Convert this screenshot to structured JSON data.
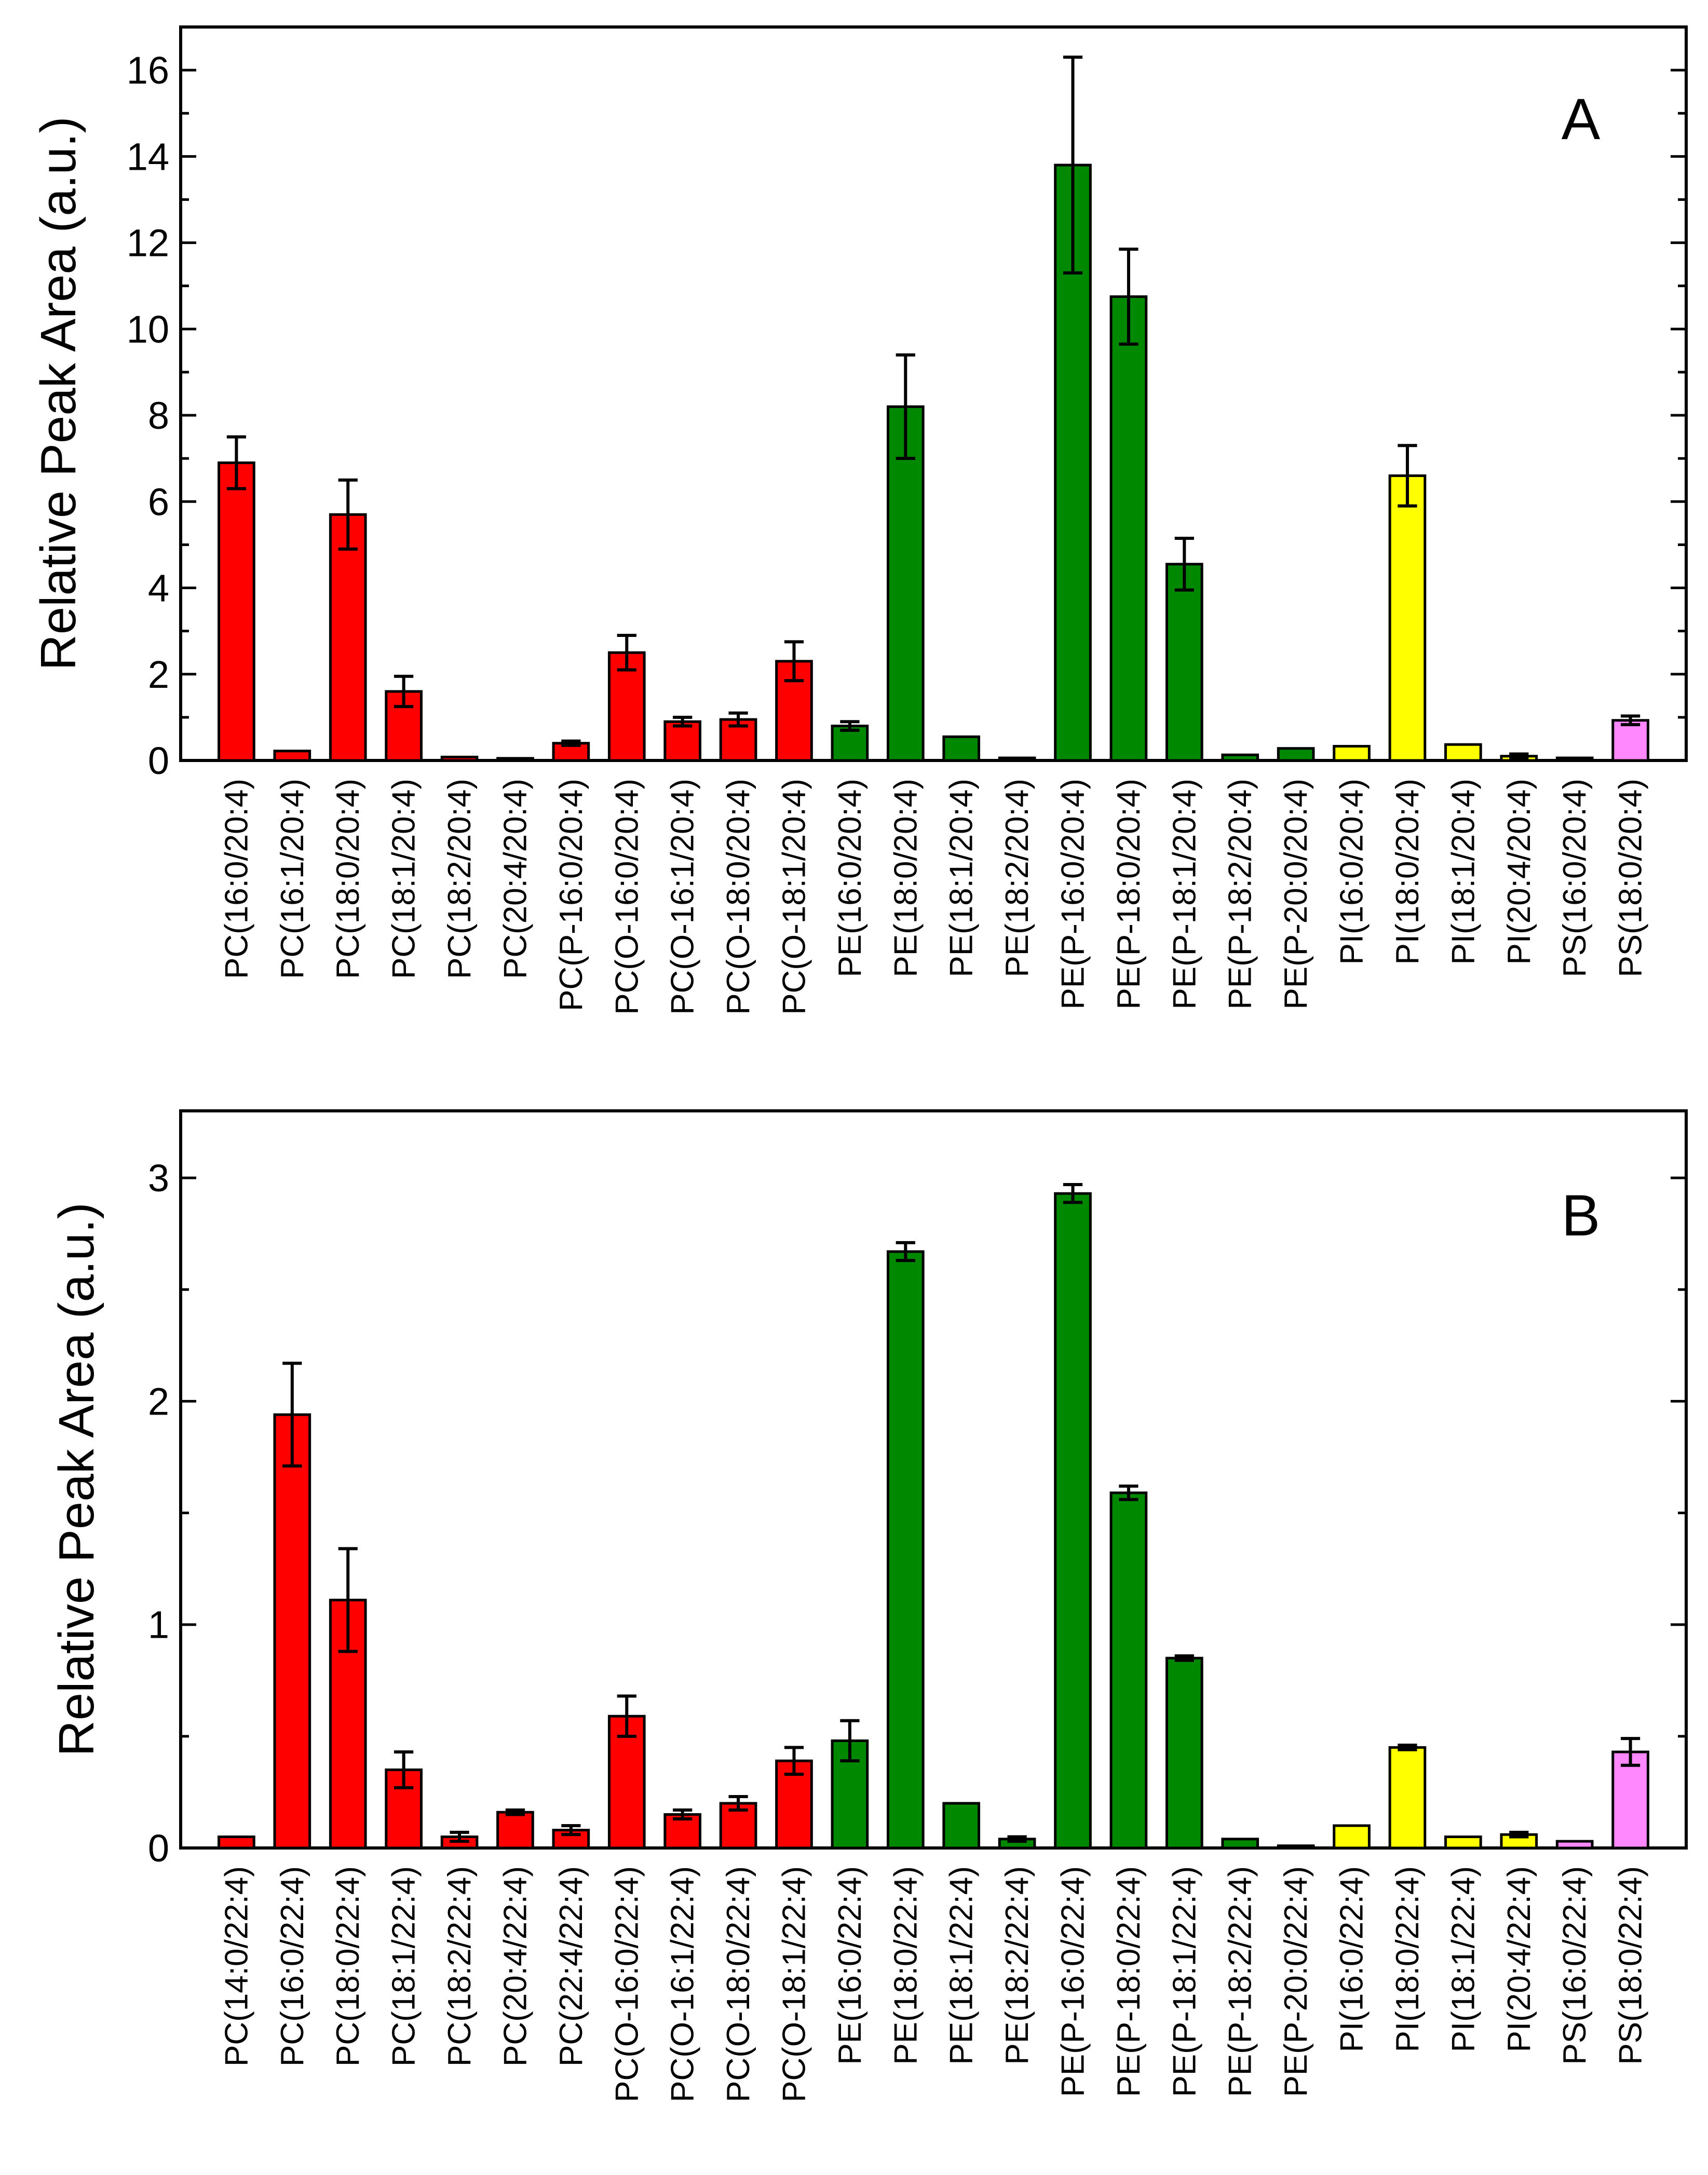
{
  "colors": {
    "PC": "#ff0000",
    "PE": "#008800",
    "PI": "#ffff00",
    "PS": "#ff88ff"
  },
  "chart_data": [
    {
      "type": "bar",
      "panel_label": "A",
      "ylabel": "Relative Peak Area (a.u.)",
      "xlabel": "",
      "ylim": [
        0,
        17
      ],
      "yticks": [
        0,
        2,
        4,
        6,
        8,
        10,
        12,
        14,
        16
      ],
      "categories": [
        "PC(16:0/20:4)",
        "PC(16:1/20:4)",
        "PC(18:0/20:4)",
        "PC(18:1/20:4)",
        "PC(18:2/20:4)",
        "PC(20:4/20:4)",
        "PC(P-16:0/20:4)",
        "PC(O-16:0/20:4)",
        "PC(O-16:1/20:4)",
        "PC(O-18:0/20:4)",
        "PC(O-18:1/20:4)",
        "PE(16:0/20:4)",
        "PE(18:0/20:4)",
        "PE(18:1/20:4)",
        "PE(18:2/20:4)",
        "PE(P-16:0/20:4)",
        "PE(P-18:0/20:4)",
        "PE(P-18:1/20:4)",
        "PE(P-18:2/20:4)",
        "PE(P-20:0/20:4)",
        "PI(16:0/20:4)",
        "PI(18:0/20:4)",
        "PI(18:1/20:4)",
        "PI(20:4/20:4)",
        "PS(16:0/20:4)",
        "PS(18:0/20:4)"
      ],
      "classes": [
        "PC",
        "PC",
        "PC",
        "PC",
        "PC",
        "PC",
        "PC",
        "PC",
        "PC",
        "PC",
        "PC",
        "PE",
        "PE",
        "PE",
        "PE",
        "PE",
        "PE",
        "PE",
        "PE",
        "PE",
        "PI",
        "PI",
        "PI",
        "PI",
        "PS",
        "PS"
      ],
      "values": [
        6.9,
        0.22,
        5.7,
        1.6,
        0.08,
        0.05,
        0.4,
        2.5,
        0.9,
        0.95,
        2.3,
        0.8,
        8.2,
        0.55,
        0.06,
        13.8,
        10.75,
        4.55,
        0.13,
        0.28,
        0.33,
        6.6,
        0.37,
        0.1,
        0.06,
        0.93
      ],
      "errors": [
        0.6,
        0.0,
        0.8,
        0.35,
        0.0,
        0.0,
        0.05,
        0.4,
        0.1,
        0.15,
        0.45,
        0.1,
        1.2,
        0.0,
        0.0,
        2.5,
        1.1,
        0.6,
        0.0,
        0.0,
        0.0,
        0.7,
        0.0,
        0.05,
        0.0,
        0.1
      ]
    },
    {
      "type": "bar",
      "panel_label": "B",
      "ylabel": "Relative Peak Area (a.u.)",
      "xlabel": "",
      "ylim": [
        0,
        3.3
      ],
      "yticks": [
        0,
        1,
        2,
        3
      ],
      "categories": [
        "PC(14:0/22:4)",
        "PC(16:0/22:4)",
        "PC(18:0/22:4)",
        "PC(18:1/22:4)",
        "PC(18:2/22:4)",
        "PC(20:4/22:4)",
        "PC(22:4/22:4)",
        "PC(O-16:0/22:4)",
        "PC(O-16:1/22:4)",
        "PC(O-18:0/22:4)",
        "PC(O-18:1/22:4)",
        "PE(16:0/22:4)",
        "PE(18:0/22:4)",
        "PE(18:1/22:4)",
        "PE(18:2/22:4)",
        "PE(P-16:0/22:4)",
        "PE(P-18:0/22:4)",
        "PE(P-18:1/22:4)",
        "PE(P-18:2/22:4)",
        "PE(P-20:0/22:4)",
        "PI(16:0/22:4)",
        "PI(18:0/22:4)",
        "PI(18:1/22:4)",
        "PI(20:4/22:4)",
        "PS(16:0/22:4)",
        "PS(18:0/22:4)"
      ],
      "classes": [
        "PC",
        "PC",
        "PC",
        "PC",
        "PC",
        "PC",
        "PC",
        "PC",
        "PC",
        "PC",
        "PC",
        "PE",
        "PE",
        "PE",
        "PE",
        "PE",
        "PE",
        "PE",
        "PE",
        "PE",
        "PI",
        "PI",
        "PI",
        "PI",
        "PS",
        "PS"
      ],
      "values": [
        0.05,
        1.94,
        1.11,
        0.35,
        0.05,
        0.16,
        0.08,
        0.59,
        0.15,
        0.2,
        0.39,
        0.48,
        2.67,
        0.2,
        0.04,
        2.93,
        1.59,
        0.85,
        0.04,
        0.01,
        0.1,
        0.45,
        0.05,
        0.06,
        0.03,
        0.43
      ],
      "errors": [
        0.0,
        0.23,
        0.23,
        0.08,
        0.02,
        0.01,
        0.02,
        0.09,
        0.02,
        0.03,
        0.06,
        0.09,
        0.04,
        0.0,
        0.01,
        0.04,
        0.03,
        0.01,
        0.0,
        0.0,
        0.0,
        0.01,
        0.0,
        0.01,
        0.0,
        0.06
      ]
    }
  ]
}
